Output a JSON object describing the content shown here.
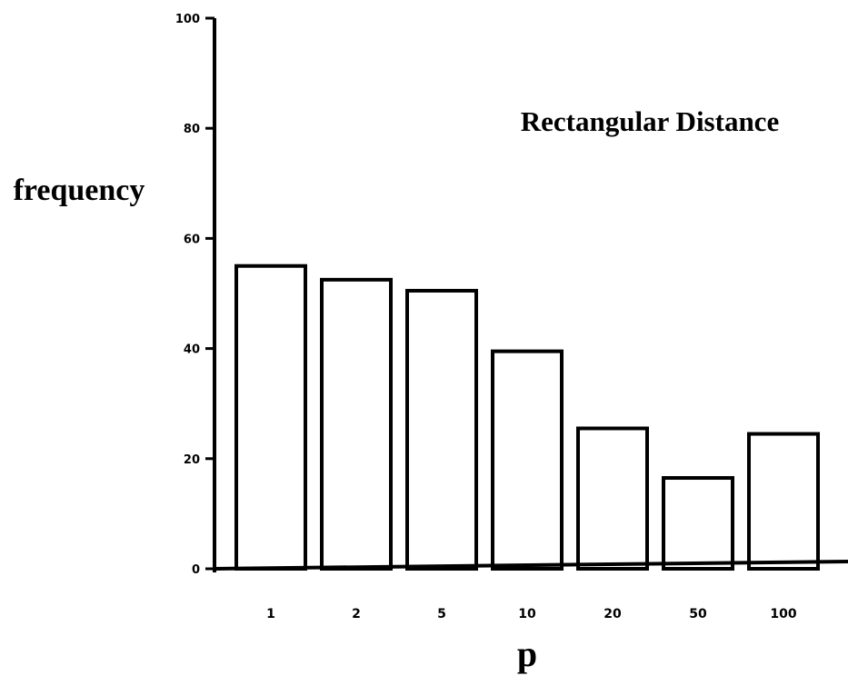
{
  "chart_data": {
    "type": "bar",
    "title": "Rectangular Distance",
    "xlabel": "p",
    "ylabel": "frequency",
    "categories": [
      "1",
      "2",
      "5",
      "10",
      "20",
      "50",
      "100"
    ],
    "values": [
      55,
      52.5,
      50.5,
      39.5,
      25.5,
      16.5,
      24.5
    ],
    "ylim": [
      0,
      100
    ],
    "yticks": [
      0,
      20,
      40,
      60,
      80,
      100
    ],
    "grid": false,
    "colors": {
      "bar_fill": "#ffffff",
      "bar_stroke": "#000000"
    }
  }
}
